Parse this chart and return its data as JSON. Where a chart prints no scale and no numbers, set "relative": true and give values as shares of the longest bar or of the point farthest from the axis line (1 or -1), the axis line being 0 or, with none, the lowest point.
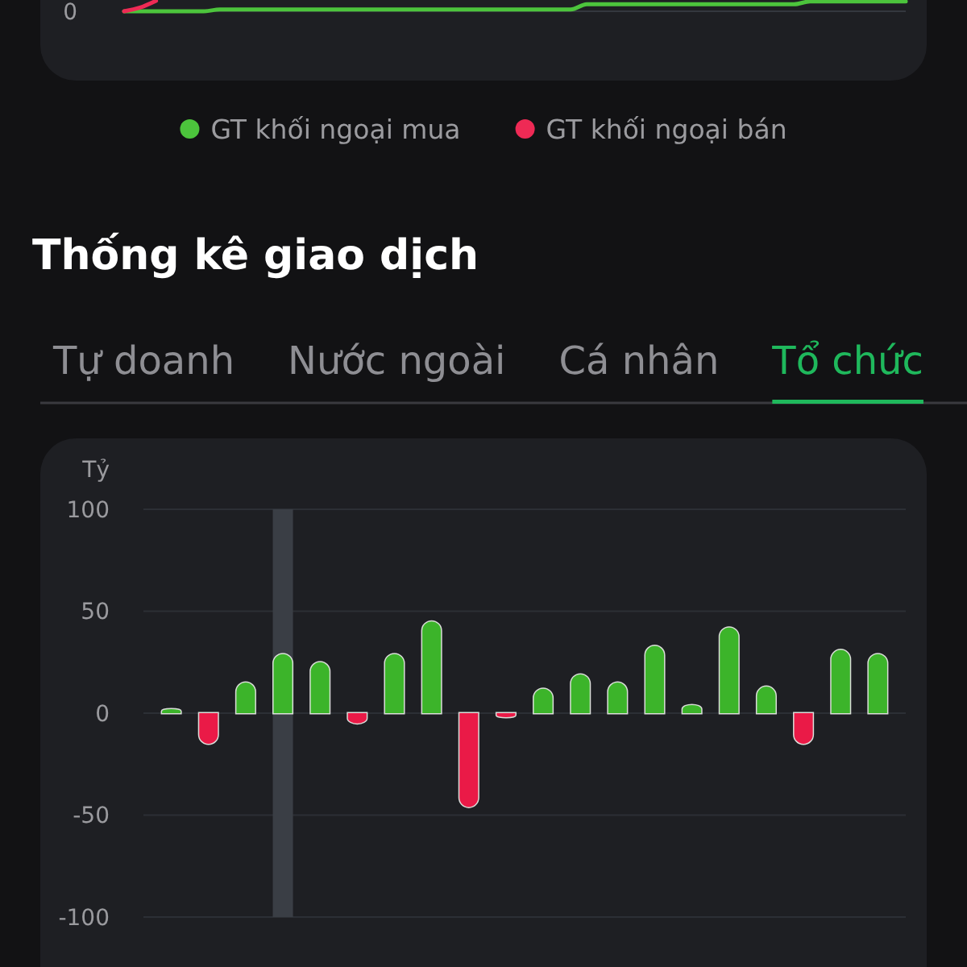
{
  "chart_data": [
    {
      "type": "line",
      "relative": true,
      "categories": [
        null,
        null,
        null,
        null,
        null,
        null,
        null,
        null,
        null,
        null,
        null,
        null,
        null,
        null,
        null,
        null,
        null,
        null,
        null,
        null,
        null,
        null,
        null,
        null,
        null,
        null,
        null,
        null,
        null,
        null,
        null,
        null,
        null,
        null,
        null,
        null,
        null,
        null,
        null,
        null,
        null,
        null,
        null,
        null,
        null,
        null,
        null,
        null,
        null,
        null
      ],
      "series": [
        {
          "name": "GT khối ngoại mua",
          "color": "#4cc43c",
          "values": [
            0,
            0,
            0,
            0,
            0,
            0,
            0.17,
            0.17,
            0.17,
            0.17,
            0.17,
            0.17,
            0.17,
            0.17,
            0.17,
            0.17,
            0.17,
            0.17,
            0.17,
            0.17,
            0.17,
            0.17,
            0.17,
            0.17,
            0.17,
            0.17,
            0.17,
            0.17,
            0.17,
            0.67,
            0.67,
            0.67,
            0.67,
            0.67,
            0.67,
            0.67,
            0.67,
            0.67,
            0.67,
            0.67,
            0.67,
            0.67,
            0.67,
            0.94,
            0.94,
            0.94,
            0.94,
            0.94,
            0.94,
            0.94
          ]
        },
        {
          "name": "GT khối ngoại bán",
          "color": "#ee2a55",
          "values": [
            0,
            0.35,
            1,
            null,
            null,
            null,
            null,
            null,
            null,
            null,
            null,
            null,
            null,
            null,
            null,
            null,
            null,
            null,
            null,
            null,
            null,
            null,
            null,
            null,
            null,
            null,
            null,
            null,
            null,
            null,
            null,
            null,
            null,
            null,
            null,
            null,
            null,
            null,
            null,
            null,
            null,
            null,
            null,
            null,
            null,
            null,
            null,
            null,
            null,
            null
          ]
        }
      ],
      "ref_lines": [
        {
          "axis": "y",
          "value": 0,
          "label": "0",
          "color": "#34373e"
        }
      ],
      "legend": "bottom"
    },
    {
      "type": "bar",
      "title": "Thống kê giao dịch",
      "subtitle": "Tổ chức",
      "annotations": [
        "Tự doanh",
        "Nước ngoài",
        "Cá nhân"
      ],
      "ylabel": "Tỷ",
      "categories": [
        null,
        null,
        null,
        null,
        null,
        null,
        null,
        null,
        null,
        null,
        null,
        null,
        null,
        null,
        null,
        null,
        null,
        null,
        null,
        null
      ],
      "values": [
        2,
        -15,
        15,
        29,
        25,
        -5,
        29,
        45,
        -46,
        -2,
        12,
        19,
        15,
        33,
        4,
        42,
        13,
        -15,
        31,
        29
      ],
      "colors": [
        "#3cb42a",
        "#ea1a47",
        "#3cb42a",
        "#3cb42a",
        "#3cb42a",
        "#ea1a47",
        "#3cb42a",
        "#3cb42a",
        "#ea1a47",
        "#ea1a47",
        "#3cb42a",
        "#3cb42a",
        "#3cb42a",
        "#3cb42a",
        "#3cb42a",
        "#3cb42a",
        "#3cb42a",
        "#ea1a47",
        "#3cb42a",
        "#3cb42a"
      ],
      "ylim": [
        -100,
        100
      ],
      "yticks": [
        -100,
        -50,
        0,
        50,
        100
      ],
      "grid": "y"
    }
  ]
}
